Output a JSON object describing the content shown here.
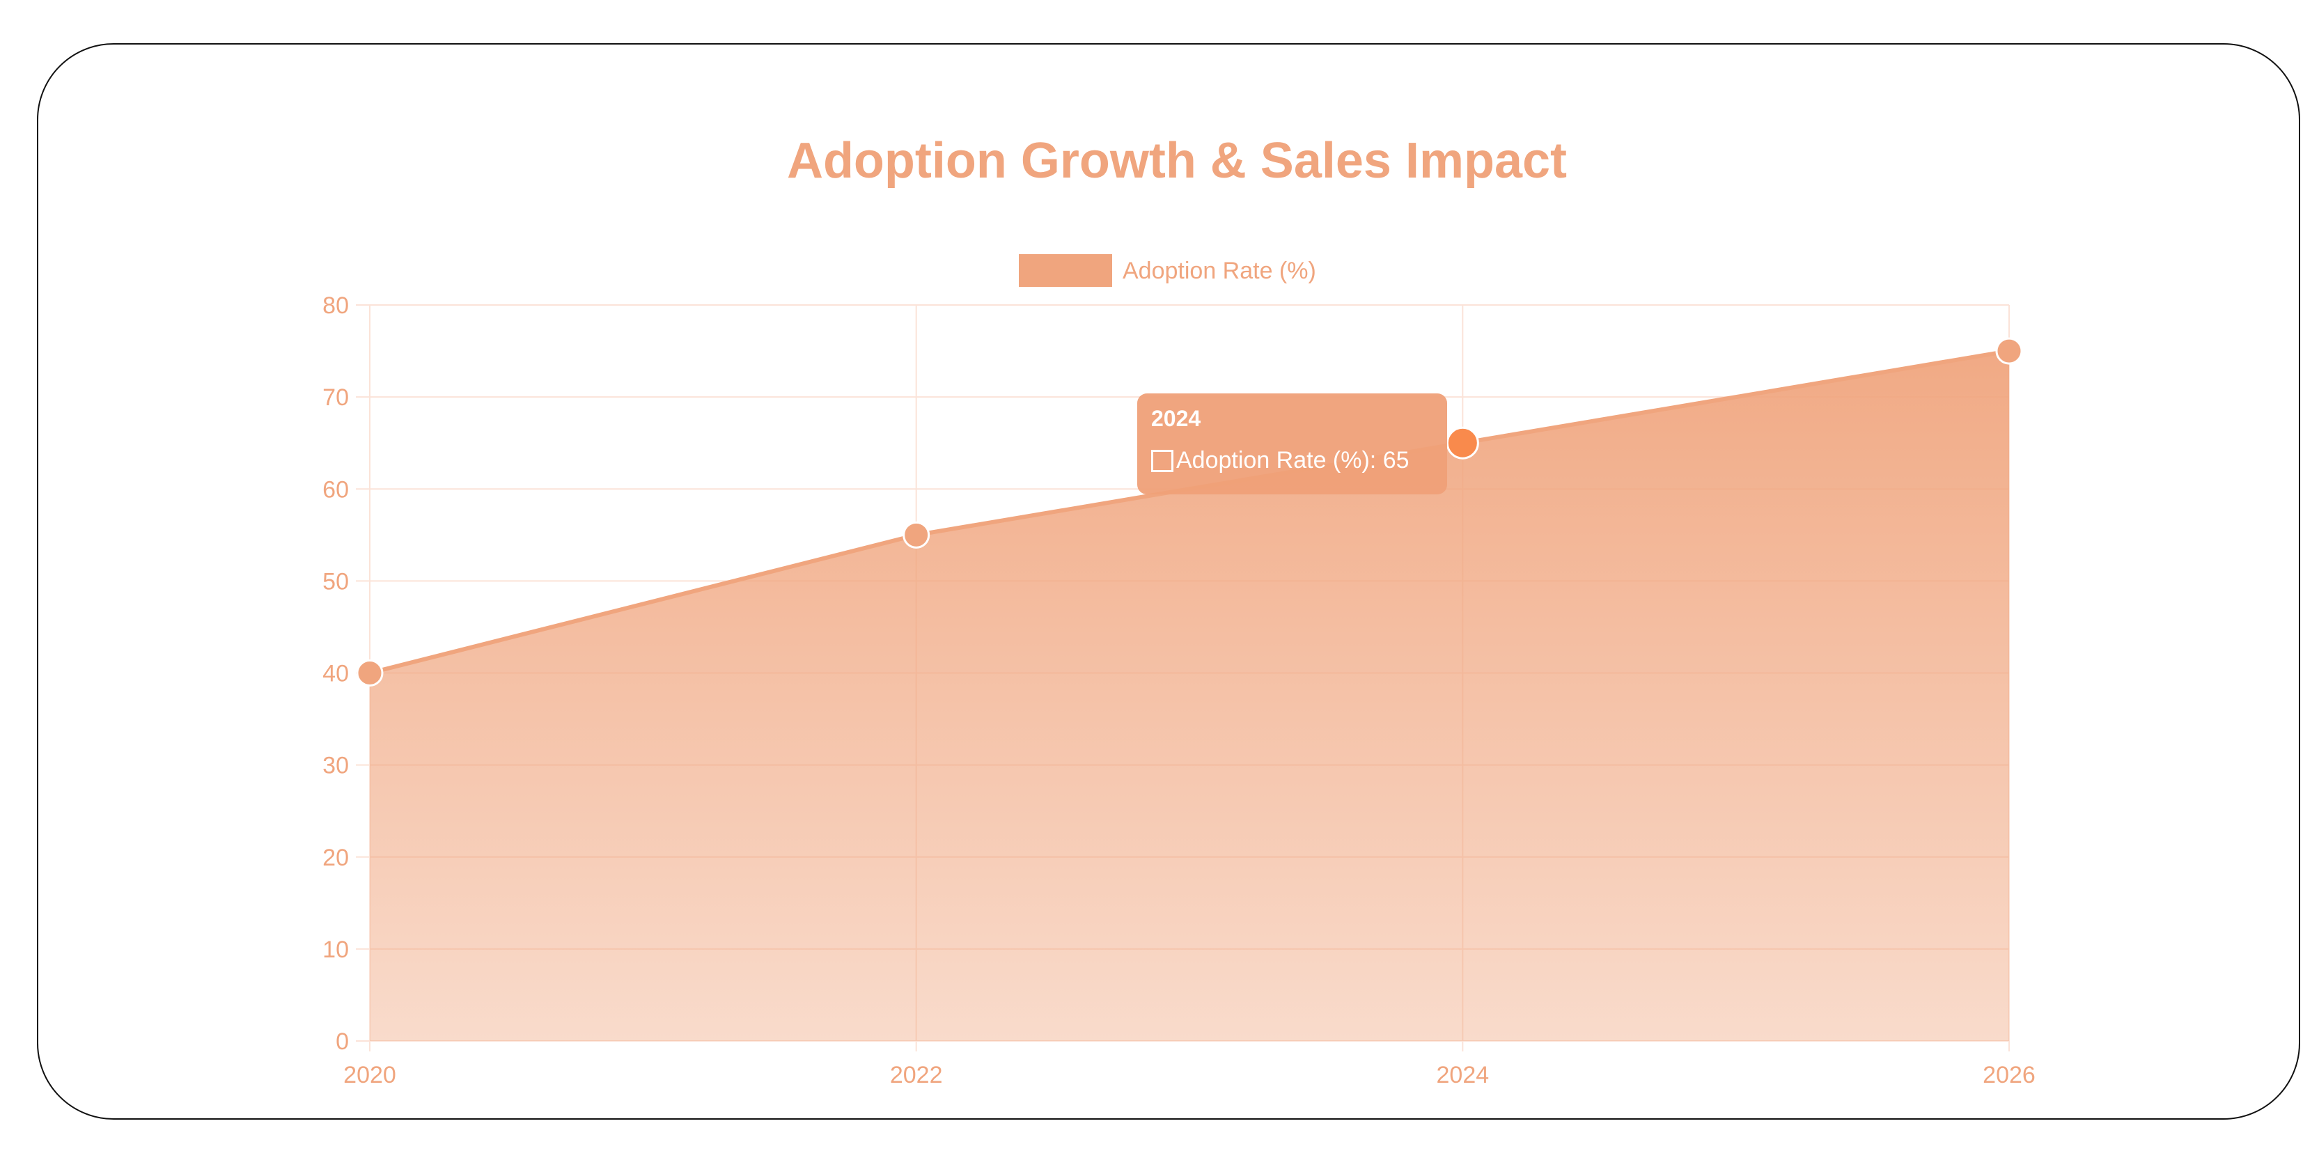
{
  "chart_data": {
    "type": "area",
    "title": "Adoption Growth & Sales Impact",
    "legend": {
      "label": "Adoption Rate (%)",
      "placement": "top-center"
    },
    "categories": [
      "2020",
      "2022",
      "2024",
      "2026"
    ],
    "series": [
      {
        "name": "Adoption Rate (%)",
        "values": [
          40,
          55,
          65,
          75
        ]
      }
    ],
    "ylim": [
      0,
      80
    ],
    "yticks": [
      0,
      10,
      20,
      30,
      40,
      50,
      60,
      70,
      80
    ],
    "grid": true,
    "xlabel": "",
    "ylabel": "",
    "colors": {
      "main": "#f0a57e",
      "text": "#f0a57e",
      "highlight": "#f98a4c",
      "grid": "#fbe3d8"
    },
    "tooltip": {
      "title": "2024",
      "label": "Adoption Rate (%): 65"
    }
  }
}
